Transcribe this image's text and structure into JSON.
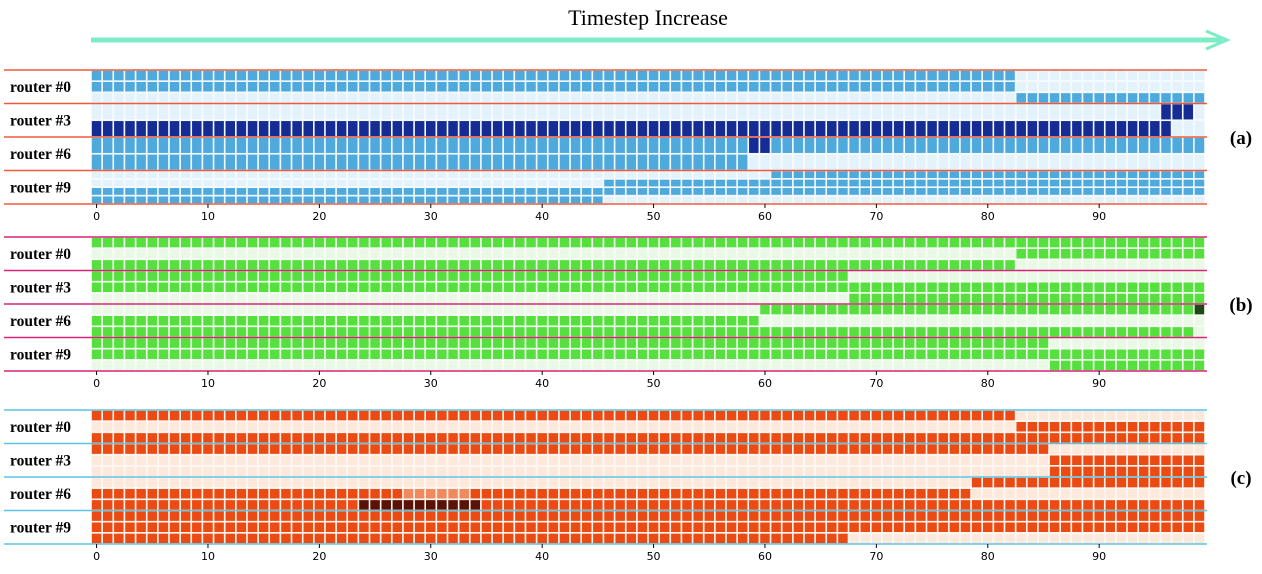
{
  "header": {
    "title": "Timestep Increase",
    "arrow_color": "#7debc3"
  },
  "chart_data": {
    "type": "heatmap",
    "title": "Timestep Increase",
    "description_scale": "Each cell row represents expert index (2 rows per router, top-2 routing) over 100 timesteps; shade indicates expert selection",
    "timesteps": 100,
    "xlim": [
      0,
      99
    ],
    "xticks": [
      0,
      10,
      20,
      30,
      40,
      50,
      60,
      70,
      80,
      90
    ],
    "panels": [
      {
        "label": "(a)",
        "line_color": "#f05a3c",
        "colors": {
          "bg": "#e4f3fb",
          "main": "#4ea9dc",
          "dark": "#142c94",
          "mid": "#4ea9dc"
        },
        "routers": [
          {
            "name": "router #0",
            "rows": [
              [
                {
                  "from": 0,
                  "to": 82,
                  "c": "main"
                }
              ],
              [
                {
                  "from": 0,
                  "to": 82,
                  "c": "main"
                }
              ],
              [
                {
                  "from": 83,
                  "to": 99,
                  "c": "main"
                }
              ]
            ]
          },
          {
            "name": "router #3",
            "rows": [
              [
                {
                  "from": 0,
                  "to": 95,
                  "c": "bg"
                },
                {
                  "from": 96,
                  "to": 98,
                  "c": "dark"
                }
              ],
              [
                {
                  "from": 0,
                  "to": 96,
                  "c": "dark"
                }
              ]
            ]
          },
          {
            "name": "router #6",
            "rows": [
              [
                {
                  "from": 0,
                  "to": 58,
                  "c": "main"
                },
                {
                  "from": 59,
                  "to": 60,
                  "c": "dark"
                },
                {
                  "from": 61,
                  "to": 99,
                  "c": "main"
                }
              ],
              [
                {
                  "from": 0,
                  "to": 58,
                  "c": "main"
                }
              ]
            ]
          },
          {
            "name": "router #9",
            "rows": [
              [
                {
                  "from": 61,
                  "to": 99,
                  "c": "main"
                }
              ],
              [
                {
                  "from": 46,
                  "to": 99,
                  "c": "main"
                }
              ],
              [
                {
                  "from": 0,
                  "to": 45,
                  "c": "main"
                },
                {
                  "from": 46,
                  "to": 99,
                  "c": "main"
                }
              ],
              [
                {
                  "from": 0,
                  "to": 45,
                  "c": "main"
                }
              ]
            ]
          }
        ]
      },
      {
        "label": "(b)",
        "line_color": "#d6247a",
        "colors": {
          "bg": "#eaf9e6",
          "main": "#55e03e",
          "dark": "#1d4a14",
          "mid": "#55e03e"
        },
        "routers": [
          {
            "name": "router #0",
            "rows": [
              [
                {
                  "from": 0,
                  "to": 99,
                  "c": "main"
                }
              ],
              [
                {
                  "from": 83,
                  "to": 99,
                  "c": "main"
                }
              ],
              [
                {
                  "from": 0,
                  "to": 82,
                  "c": "main"
                }
              ]
            ]
          },
          {
            "name": "router #3",
            "rows": [
              [
                {
                  "from": 0,
                  "to": 67,
                  "c": "main"
                }
              ],
              [
                {
                  "from": 0,
                  "to": 67,
                  "c": "main"
                },
                {
                  "from": 68,
                  "to": 99,
                  "c": "main"
                }
              ],
              [
                {
                  "from": 68,
                  "to": 99,
                  "c": "main"
                }
              ]
            ]
          },
          {
            "name": "router #6",
            "rows": [
              [
                {
                  "from": 60,
                  "to": 98,
                  "c": "main"
                },
                {
                  "from": 99,
                  "to": 99,
                  "c": "dark"
                }
              ],
              [
                {
                  "from": 0,
                  "to": 59,
                  "c": "main"
                }
              ],
              [
                {
                  "from": 0,
                  "to": 59,
                  "c": "main"
                },
                {
                  "from": 60,
                  "to": 98,
                  "c": "main"
                }
              ]
            ]
          },
          {
            "name": "router #9",
            "rows": [
              [
                {
                  "from": 0,
                  "to": 85,
                  "c": "main"
                }
              ],
              [
                {
                  "from": 0,
                  "to": 85,
                  "c": "main"
                },
                {
                  "from": 86,
                  "to": 99,
                  "c": "main"
                }
              ],
              [
                {
                  "from": 86,
                  "to": 99,
                  "c": "main"
                }
              ]
            ]
          }
        ]
      },
      {
        "label": "(c)",
        "line_color": "#5ac3e6",
        "colors": {
          "bg": "#fde8dc",
          "main": "#eb4a12",
          "dark": "#5a1204",
          "mid": "#f08a5c"
        },
        "routers": [
          {
            "name": "router #0",
            "rows": [
              [
                {
                  "from": 0,
                  "to": 82,
                  "c": "main"
                }
              ],
              [
                {
                  "from": 83,
                  "to": 99,
                  "c": "main"
                }
              ],
              [
                {
                  "from": 0,
                  "to": 99,
                  "c": "main"
                }
              ]
            ]
          },
          {
            "name": "router #3",
            "rows": [
              [
                {
                  "from": 0,
                  "to": 85,
                  "c": "main"
                }
              ],
              [
                {
                  "from": 86,
                  "to": 99,
                  "c": "main"
                }
              ],
              [
                {
                  "from": 86,
                  "to": 99,
                  "c": "main"
                }
              ]
            ]
          },
          {
            "name": "router #6",
            "rows": [
              [
                {
                  "from": 79,
                  "to": 99,
                  "c": "main"
                }
              ],
              [
                {
                  "from": 0,
                  "to": 23,
                  "c": "main"
                },
                {
                  "from": 24,
                  "to": 27,
                  "c": "main"
                },
                {
                  "from": 28,
                  "to": 33,
                  "c": "mid"
                },
                {
                  "from": 34,
                  "to": 78,
                  "c": "main"
                }
              ],
              [
                {
                  "from": 0,
                  "to": 23,
                  "c": "main"
                },
                {
                  "from": 24,
                  "to": 34,
                  "c": "dark"
                },
                {
                  "from": 35,
                  "to": 99,
                  "c": "main"
                }
              ]
            ]
          },
          {
            "name": "router #9",
            "rows": [
              [
                {
                  "from": 0,
                  "to": 99,
                  "c": "main"
                }
              ],
              [
                {
                  "from": 0,
                  "to": 67,
                  "c": "main"
                },
                {
                  "from": 68,
                  "to": 99,
                  "c": "main"
                }
              ],
              [
                {
                  "from": 0,
                  "to": 67,
                  "c": "main"
                }
              ]
            ]
          }
        ]
      }
    ]
  }
}
